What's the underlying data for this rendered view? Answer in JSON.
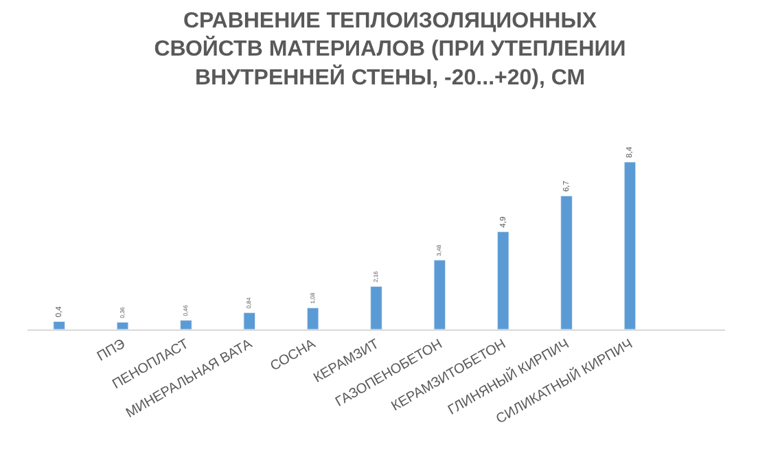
{
  "chart_data": {
    "type": "bar",
    "title": "СРАВНЕНИЕ ТЕПЛОИЗОЛЯЦИОННЫХ СВОЙСТВ МАТЕРИАЛОВ (ПРИ УТЕПЛЕНИИ ВНУТРЕННЕЙ СТЕНЫ, -20...+20), СМ",
    "categories": [
      null,
      "ППЭ",
      "ПЕНОПЛАСТ",
      "МИНЕРАЛЬНАЯ ВАТА",
      "СОСНА",
      "КЕРАМЗИТ",
      "ГАЗОПЕНОБЕТОН",
      "КЕРАМЗИТОБЕТОН",
      "ГЛИНЯНЫЙ КИРПИЧ",
      "СИЛИКАТНЫЙ КИРПИЧ"
    ],
    "values": [
      0.4,
      0.36,
      0.46,
      0.84,
      1.08,
      2.16,
      3.48,
      4.9,
      6.7,
      8.4
    ],
    "value_labels": [
      "0,4",
      "0,36",
      "0,46",
      "0,84",
      "1,08",
      "2,16",
      "3,48",
      "4,9",
      "6,7",
      "8,4"
    ],
    "color": "#5b9bd5",
    "legend": false
  }
}
